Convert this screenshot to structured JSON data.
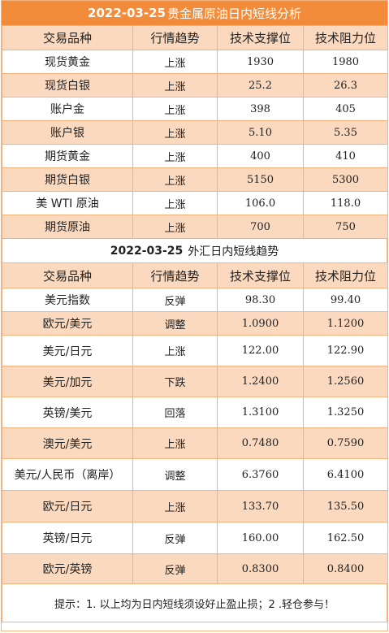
{
  "precious": {
    "date": "2022-03-25",
    "title": "贵金属原油日内短线分析",
    "headers": [
      "交易品种",
      "行情趋势",
      "技术支撑位",
      "技术阻力位"
    ],
    "rows": [
      [
        "现货黄金",
        "上涨",
        "1930",
        "1980"
      ],
      [
        "现货白银",
        "上涨",
        "25.2",
        "26.3"
      ],
      [
        "账户金",
        "上涨",
        "398",
        "405"
      ],
      [
        "账户银",
        "上涨",
        "5.10",
        "5.35"
      ],
      [
        "期货黄金",
        "上涨",
        "400",
        "410"
      ],
      [
        "期货白银",
        "上涨",
        "5150",
        "5300"
      ],
      [
        "美 WTI 原油",
        "上涨",
        "106.0",
        "118.0"
      ],
      [
        "期货原油",
        "上涨",
        "700",
        "750"
      ]
    ]
  },
  "forex": {
    "date": "2022-03-25",
    "title": "外汇日内短线趋势",
    "headers": [
      "交易品种",
      "行情趋势",
      "技术支撑位",
      "技术阻力位"
    ],
    "rows": [
      [
        "美元指数",
        "反弹",
        "98.30",
        "99.40"
      ],
      [
        "欧元/美元",
        "调整",
        "1.0900",
        "1.1200"
      ],
      [
        "美元/日元",
        "上涨",
        "122.00",
        "122.90"
      ],
      [
        "美元/加元",
        "下跌",
        "1.2400",
        "1.2560"
      ],
      [
        "英镑/美元",
        "回落",
        "1.3100",
        "1.3250"
      ],
      [
        "澳元/美元",
        "上涨",
        "0.7480",
        "0.7590"
      ],
      [
        "美元/人民币（离岸）",
        "调整",
        "6.3760",
        "6.4100"
      ],
      [
        "欧元/日元",
        "上涨",
        "133.70",
        "135.50"
      ],
      [
        "英镑/日元",
        "反弹",
        "160.00",
        "162.50"
      ],
      [
        "欧元/英镑",
        "反弹",
        "0.8300",
        "0.8400"
      ]
    ]
  },
  "footer": {
    "note": "提示：1. 以上均为日内短线须设好止盈止损；2 .轻仓参与！"
  },
  "colors": {
    "banner": "#f28c3a",
    "stripe": "#fbd9bf",
    "border": "#f4b27e"
  }
}
